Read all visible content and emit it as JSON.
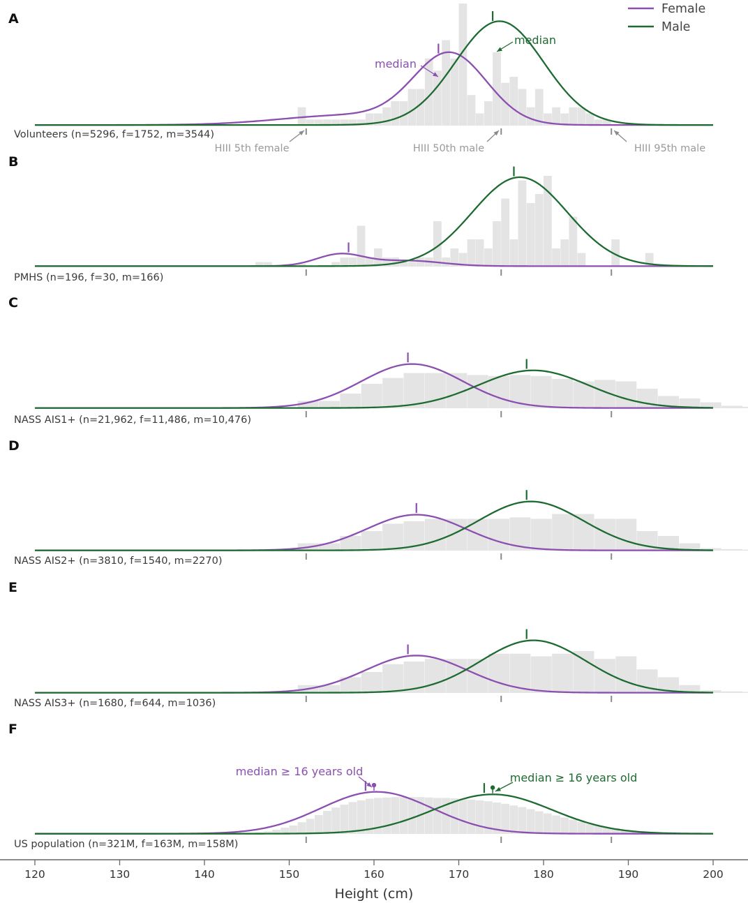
{
  "chart_data": {
    "type": "histogram-density",
    "xlabel": "Height (cm)",
    "xlim": [
      120,
      200
    ],
    "x_ticks": [
      120,
      130,
      140,
      150,
      160,
      170,
      180,
      190,
      200
    ],
    "legend": {
      "placement": "top-right",
      "entries": [
        {
          "name": "Female",
          "color": "#8B4FB0"
        },
        {
          "name": "Male",
          "color": "#1E6B32"
        }
      ]
    },
    "colors": {
      "female": "#8B4FB0",
      "male": "#1E6B32",
      "histogram": "#e4e4e4",
      "reference": "#8a8a8a"
    },
    "reference_marks": [
      {
        "label": "HIII 5th female",
        "height": 152
      },
      {
        "label": "HIII 50th male",
        "height": 175
      },
      {
        "label": "HIII 95th male",
        "height": 188
      }
    ],
    "panels": [
      {
        "letter": "A",
        "label": "Volunteers (n=5296, f=1752, m=3544)",
        "bins": {
          "start": 151,
          "width": 1,
          "values": [
            0.15,
            0.05,
            0.05,
            0.05,
            0.05,
            0.05,
            0.05,
            0.05,
            0.1,
            0.1,
            0.15,
            0.2,
            0.2,
            0.3,
            0.2,
            0.3,
            0.4,
            0.5,
            0.5,
            0.5,
            0.6,
            0.45,
            0.3,
            0.25,
            0.15,
            0.4,
            0.4,
            0.25,
            0.15,
            0.1,
            0.2,
            0.2,
            0.1,
            0.1,
            0.05,
            0.05,
            0.05
          ]
        },
        "bin_overrides": [
          {
            "bin_start": 165,
            "value": 0.3
          },
          {
            "bin_start": 166,
            "value": 0.55
          },
          {
            "bin_start": 167,
            "value": 0.45
          },
          {
            "bin_start": 168,
            "value": 0.7
          },
          {
            "bin_start": 169,
            "value": 0.55
          },
          {
            "bin_start": 170,
            "value": 1.0
          },
          {
            "bin_start": 171,
            "value": 0.25
          },
          {
            "bin_start": 172,
            "value": 0.1
          },
          {
            "bin_start": 173,
            "value": 0.2
          },
          {
            "bin_start": 174,
            "value": 0.6
          },
          {
            "bin_start": 175,
            "value": 0.35
          },
          {
            "bin_start": 176,
            "value": 0.4
          },
          {
            "bin_start": 177,
            "value": 0.3
          },
          {
            "bin_start": 178,
            "value": 0.15
          },
          {
            "bin_start": 179,
            "value": 0.3
          },
          {
            "bin_start": 180,
            "value": 0.1
          },
          {
            "bin_start": 181,
            "value": 0.15
          },
          {
            "bin_start": 182,
            "value": 0.1
          },
          {
            "bin_start": 183,
            "value": 0.15
          },
          {
            "bin_start": 184,
            "value": 0.15
          },
          {
            "bin_start": 185,
            "value": 0.1
          }
        ],
        "female": {
          "mu": 169,
          "sigma": 4.3,
          "peak": 0.57,
          "median": 167.6,
          "extra": {
            "mu": 157,
            "sigma": 8,
            "amp": 0.08
          }
        },
        "male": {
          "mu": 174.8,
          "sigma": 5.2,
          "peak": 0.85,
          "median": 174
        },
        "annotations": [
          {
            "text": "median",
            "series": "female"
          },
          {
            "text": "median",
            "series": "male"
          }
        ],
        "show_ref_labels": true
      },
      {
        "letter": "B",
        "label": "PMHS (n=196, f=30, m=166)",
        "bins": {
          "start": 146,
          "width": 1,
          "values": [
            0.05,
            0.05,
            0.0,
            0.0,
            0.03,
            0.03,
            0.0,
            0.0,
            0.0,
            0.05,
            0.1,
            0.1,
            0.45,
            0.1,
            0.2,
            0.1,
            0.1,
            0.05,
            0.05,
            0.1,
            0.1,
            0.5,
            0.1,
            0.2,
            0.15,
            0.3,
            0.3,
            0.2,
            0.5,
            0.75,
            0.3,
            0.95,
            0.7,
            0.8,
            1.0,
            0.2,
            0.3,
            0.55,
            0.15,
            0.0,
            0.0,
            0.0,
            0.3,
            0.0,
            0.0,
            0.0,
            0.15,
            0.0
          ]
        },
        "female": {
          "mu": 156,
          "sigma": 2.8,
          "peak": 0.13,
          "median": 157,
          "extra": {
            "mu": 164,
            "sigma": 4,
            "amp": 0.06
          }
        },
        "male": {
          "mu": 177.2,
          "sigma": 5.6,
          "peak": 0.98,
          "median": 176.5
        },
        "annotations": [],
        "show_ref_labels": false
      },
      {
        "letter": "C",
        "label": "NASS AIS1+ (n=21,962, f=11,486, m=10,476)",
        "bins": {
          "start": 151,
          "width": 2.5,
          "values": [
            0.15,
            0.15,
            0.3,
            0.5,
            0.62,
            0.72,
            0.72,
            0.72,
            0.68,
            0.66,
            0.68,
            0.66,
            0.6,
            0.55,
            0.58,
            0.55,
            0.4,
            0.25,
            0.2,
            0.12,
            0.05,
            0.03,
            0.01
          ]
        },
        "female": {
          "mu": 164.5,
          "sigma": 6,
          "peak": 0.9,
          "median": 164
        },
        "male": {
          "mu": 178.8,
          "sigma": 6.5,
          "peak": 0.77,
          "median": 178
        },
        "annotations": [],
        "show_ref_labels": false
      },
      {
        "letter": "D",
        "label": "NASS AIS2+ (n=3810, f=1540, m=2270)",
        "bins": {
          "start": 151,
          "width": 2.5,
          "values": [
            0.15,
            0.15,
            0.3,
            0.4,
            0.55,
            0.6,
            0.65,
            0.65,
            0.65,
            0.65,
            0.68,
            0.65,
            0.75,
            0.75,
            0.65,
            0.65,
            0.4,
            0.3,
            0.15,
            0.05,
            0.03,
            0.02,
            0.01
          ]
        },
        "female": {
          "mu": 165,
          "sigma": 5.8,
          "peak": 0.73,
          "median": 165
        },
        "male": {
          "mu": 178.5,
          "sigma": 6.2,
          "peak": 1.0,
          "median": 178
        },
        "annotations": [],
        "show_ref_labels": false
      },
      {
        "letter": "E",
        "label": "NASS AIS3+ (n=1680, f=644, m=1036)",
        "bins": {
          "start": 151,
          "width": 2.5,
          "values": [
            0.15,
            0.15,
            0.3,
            0.4,
            0.55,
            0.6,
            0.65,
            0.65,
            0.65,
            0.75,
            0.75,
            0.7,
            0.75,
            0.8,
            0.65,
            0.7,
            0.45,
            0.3,
            0.15,
            0.05,
            0.03,
            0.02,
            0.01
          ]
        },
        "female": {
          "mu": 165,
          "sigma": 6,
          "peak": 0.71,
          "median": 164
        },
        "male": {
          "mu": 178.8,
          "sigma": 6.2,
          "peak": 1.0,
          "median": 178
        },
        "annotations": [],
        "show_ref_labels": false
      },
      {
        "letter": "F",
        "label": "US population (n=321M, f=163M, m=158M)",
        "bins": {
          "start": 145,
          "width": 1,
          "values": [
            0.02,
            0.04,
            0.06,
            0.1,
            0.15,
            0.2,
            0.28,
            0.36,
            0.45,
            0.55,
            0.63,
            0.7,
            0.76,
            0.8,
            0.84,
            0.86,
            0.87,
            0.88,
            0.88,
            0.88,
            0.88,
            0.87,
            0.86,
            0.86,
            0.85,
            0.84,
            0.82,
            0.8,
            0.78,
            0.75,
            0.72,
            0.68,
            0.64,
            0.59,
            0.54,
            0.49,
            0.44,
            0.39,
            0.34,
            0.29,
            0.24,
            0.2,
            0.16,
            0.13,
            0.1,
            0.08,
            0.06,
            0.04,
            0.03,
            0.02
          ]
        },
        "female": {
          "mu": 160.3,
          "sigma": 6.6,
          "peak": 1.0,
          "median": 159
        },
        "male": {
          "mu": 174,
          "sigma": 7,
          "peak": 0.94,
          "median": 173
        },
        "annotations": [
          {
            "text": "median ≥ 16 years old",
            "series": "female",
            "point": 160
          },
          {
            "text": "median ≥ 16 years old",
            "series": "male",
            "point": 174
          }
        ],
        "show_ref_labels": false
      }
    ]
  }
}
